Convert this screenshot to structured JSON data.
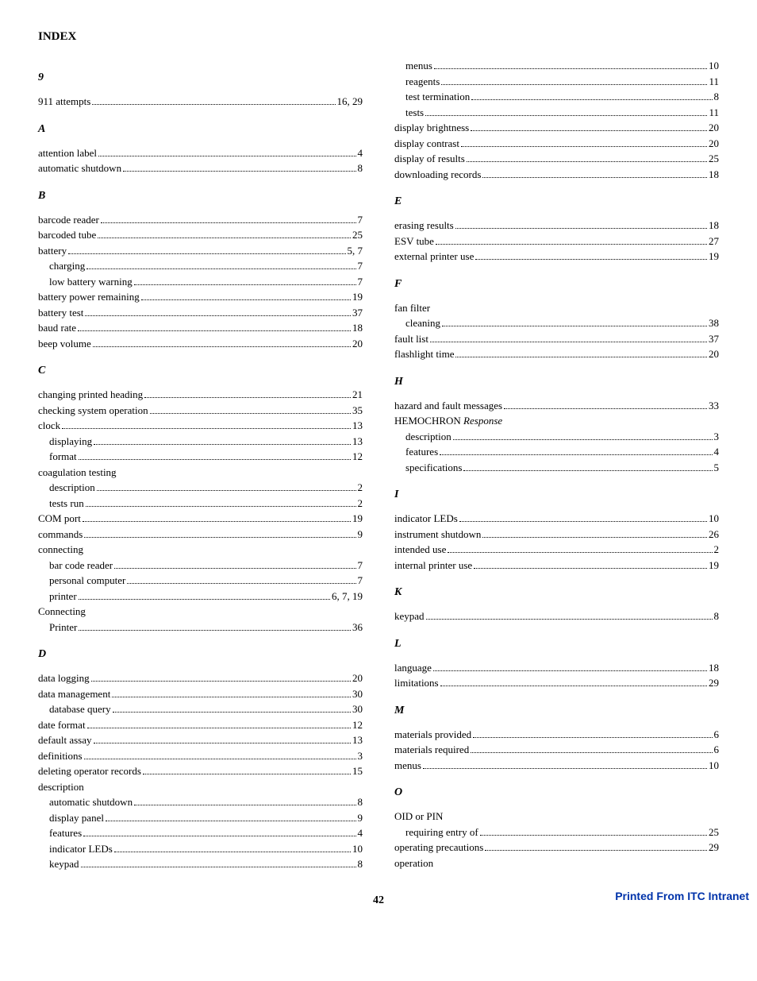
{
  "title": "INDEX",
  "page_number": "42",
  "footer": "Printed From ITC Intranet",
  "colors": {
    "footer": "#0033aa",
    "text": "#000000",
    "bg": "#ffffff"
  },
  "left": [
    {
      "type": "letter",
      "text": "9"
    },
    {
      "type": "entry",
      "label": "911 attempts",
      "page": "16, 29"
    },
    {
      "type": "letter",
      "text": "A"
    },
    {
      "type": "entry",
      "label": "attention label",
      "page": "4"
    },
    {
      "type": "entry",
      "label": "automatic shutdown",
      "page": "8"
    },
    {
      "type": "letter",
      "text": "B"
    },
    {
      "type": "entry",
      "label": "barcode reader",
      "page": "7"
    },
    {
      "type": "entry",
      "label": "barcoded tube",
      "page": "25"
    },
    {
      "type": "entry",
      "label": "battery",
      "page": "5, 7"
    },
    {
      "type": "entry",
      "label": "charging",
      "page": "7",
      "indent": 1
    },
    {
      "type": "entry",
      "label": "low battery warning",
      "page": "7",
      "indent": 1
    },
    {
      "type": "entry",
      "label": "battery power remaining",
      "page": "19"
    },
    {
      "type": "entry",
      "label": "battery test",
      "page": "37"
    },
    {
      "type": "entry",
      "label": "baud rate",
      "page": "18"
    },
    {
      "type": "entry",
      "label": "beep volume",
      "page": "20"
    },
    {
      "type": "letter",
      "text": "C"
    },
    {
      "type": "entry",
      "label": "changing printed heading",
      "page": "21"
    },
    {
      "type": "entry",
      "label": "checking system operation",
      "page": "35"
    },
    {
      "type": "entry",
      "label": "clock",
      "page": "13"
    },
    {
      "type": "entry",
      "label": "displaying",
      "page": "13",
      "indent": 1
    },
    {
      "type": "entry",
      "label": "format",
      "page": "12",
      "indent": 1
    },
    {
      "type": "heading",
      "label": "coagulation testing"
    },
    {
      "type": "entry",
      "label": "description",
      "page": "2",
      "indent": 1
    },
    {
      "type": "entry",
      "label": "tests run",
      "page": "2",
      "indent": 1
    },
    {
      "type": "entry",
      "label": "COM port",
      "page": "19"
    },
    {
      "type": "entry",
      "label": "commands",
      "page": "9"
    },
    {
      "type": "heading",
      "label": "connecting"
    },
    {
      "type": "entry",
      "label": "bar code reader",
      "page": "7",
      "indent": 1
    },
    {
      "type": "entry",
      "label": "personal computer",
      "page": "7",
      "indent": 1
    },
    {
      "type": "entry",
      "label": "printer",
      "page": "6, 7, 19",
      "indent": 1
    },
    {
      "type": "heading",
      "label": "Connecting"
    },
    {
      "type": "entry",
      "label": "Printer",
      "page": "36",
      "indent": 1
    },
    {
      "type": "letter",
      "text": "D"
    },
    {
      "type": "entry",
      "label": "data logging",
      "page": "20"
    },
    {
      "type": "entry",
      "label": "data management",
      "page": "30"
    },
    {
      "type": "entry",
      "label": "database query",
      "page": "30",
      "indent": 1
    },
    {
      "type": "entry",
      "label": "date format",
      "page": "12"
    },
    {
      "type": "entry",
      "label": "default assay",
      "page": "13"
    },
    {
      "type": "entry",
      "label": "definitions",
      "page": "3"
    },
    {
      "type": "entry",
      "label": "deleting operator records",
      "page": "15"
    },
    {
      "type": "heading",
      "label": "description"
    },
    {
      "type": "entry",
      "label": "automatic shutdown",
      "page": "8",
      "indent": 1
    },
    {
      "type": "entry",
      "label": "display panel",
      "page": "9",
      "indent": 1
    },
    {
      "type": "entry",
      "label": "features",
      "page": "4",
      "indent": 1
    },
    {
      "type": "entry",
      "label": "indicator LEDs",
      "page": "10",
      "indent": 1
    },
    {
      "type": "entry",
      "label": "keypad",
      "page": "8",
      "indent": 1
    }
  ],
  "right": [
    {
      "type": "entry",
      "label": "menus",
      "page": "10",
      "indent": 1
    },
    {
      "type": "entry",
      "label": "reagents",
      "page": "11",
      "indent": 1
    },
    {
      "type": "entry",
      "label": "test termination",
      "page": "8",
      "indent": 1
    },
    {
      "type": "entry",
      "label": "tests",
      "page": "11",
      "indent": 1
    },
    {
      "type": "entry",
      "label": "display brightness",
      "page": "20"
    },
    {
      "type": "entry",
      "label": "display contrast",
      "page": "20"
    },
    {
      "type": "entry",
      "label": "display of results",
      "page": "25"
    },
    {
      "type": "entry",
      "label": "downloading records",
      "page": "18"
    },
    {
      "type": "letter",
      "text": "E"
    },
    {
      "type": "entry",
      "label": "erasing results",
      "page": "18"
    },
    {
      "type": "entry",
      "label": "ESV tube",
      "page": "27"
    },
    {
      "type": "entry",
      "label": "external printer use",
      "page": "19"
    },
    {
      "type": "letter",
      "text": "F"
    },
    {
      "type": "heading",
      "label": "fan filter"
    },
    {
      "type": "entry",
      "label": "cleaning",
      "page": "38",
      "indent": 1
    },
    {
      "type": "entry",
      "label": "fault list",
      "page": "37"
    },
    {
      "type": "entry",
      "label": "flashlight time",
      "page": "20"
    },
    {
      "type": "letter",
      "text": "H"
    },
    {
      "type": "entry",
      "label": "hazard and fault messages",
      "page": "33"
    },
    {
      "type": "heading",
      "label_html": "HEMOCHRON <span class=\"italic\">Response</span>"
    },
    {
      "type": "entry",
      "label": "description",
      "page": "3",
      "indent": 1
    },
    {
      "type": "entry",
      "label": "features",
      "page": "4",
      "indent": 1
    },
    {
      "type": "entry",
      "label": "specifications",
      "page": "5",
      "indent": 1
    },
    {
      "type": "letter",
      "text": "I"
    },
    {
      "type": "entry",
      "label": "indicator LEDs",
      "page": "10"
    },
    {
      "type": "entry",
      "label": "instrument shutdown",
      "page": "26"
    },
    {
      "type": "entry",
      "label": "intended use",
      "page": "2"
    },
    {
      "type": "entry",
      "label": "internal printer use",
      "page": "19"
    },
    {
      "type": "letter",
      "text": "K"
    },
    {
      "type": "entry",
      "label": "keypad",
      "page": "8"
    },
    {
      "type": "letter",
      "text": "L"
    },
    {
      "type": "entry",
      "label": "language",
      "page": "18"
    },
    {
      "type": "entry",
      "label": "limitations",
      "page": "29"
    },
    {
      "type": "letter",
      "text": "M"
    },
    {
      "type": "entry",
      "label": "materials provided",
      "page": "6"
    },
    {
      "type": "entry",
      "label": "materials required",
      "page": "6"
    },
    {
      "type": "entry",
      "label": "menus",
      "page": "10"
    },
    {
      "type": "letter",
      "text": "O"
    },
    {
      "type": "heading",
      "label": "OID or PIN"
    },
    {
      "type": "entry",
      "label": "requiring entry of",
      "page": "25",
      "indent": 1
    },
    {
      "type": "entry",
      "label": "operating precautions",
      "page": "29"
    },
    {
      "type": "heading",
      "label": "operation"
    }
  ]
}
